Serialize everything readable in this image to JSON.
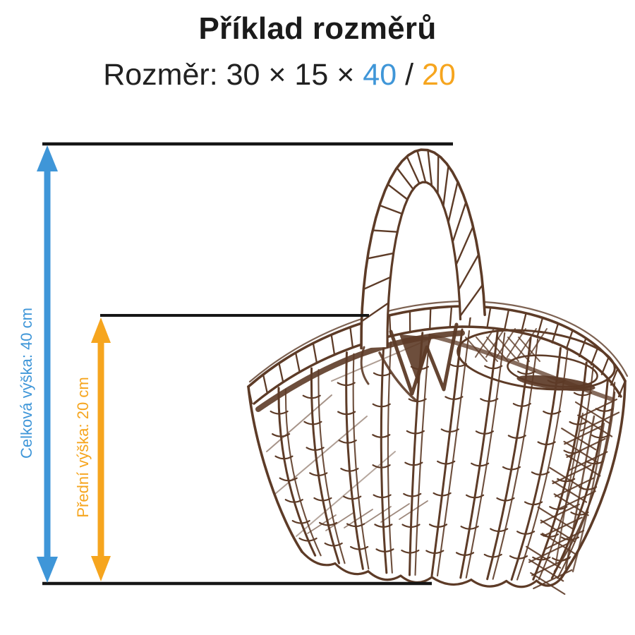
{
  "header": {
    "title": "Příklad rozměrů",
    "subtitle": {
      "prefix": "Rozměr: 30 × 15 × ",
      "total_height": "40",
      "separator": " / ",
      "front_height": "20"
    }
  },
  "dimensions": {
    "total_height": {
      "label": "Celková výška: 40 cm",
      "value_cm": 40,
      "color": "#3f96d8"
    },
    "front_height": {
      "label": "Přední výška: 20 cm",
      "value_cm": 20,
      "color": "#f6a51e"
    }
  },
  "illustration": {
    "name": "wicker-basket-sketch",
    "ink_color": "#5d3b27"
  },
  "colors": {
    "blue": "#3f96d8",
    "orange": "#f6a51e",
    "line": "#161616",
    "title_text": "#1b1b1b",
    "basket_ink": "#5d3b27"
  }
}
